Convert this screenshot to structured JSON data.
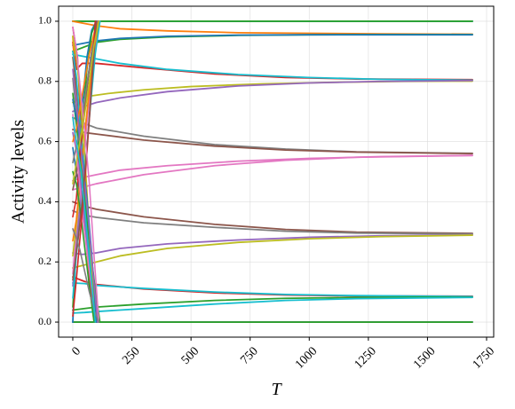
{
  "chart_data": {
    "type": "line",
    "title": "",
    "xlabel": "T",
    "ylabel": "Activity levels",
    "xlim": [
      -60,
      1780
    ],
    "ylim": [
      -0.05,
      1.05
    ],
    "xticks": [
      0,
      250,
      500,
      750,
      1000,
      1250,
      1500,
      1750
    ],
    "yticks": [
      0.0,
      0.2,
      0.4,
      0.6,
      0.8,
      1.0
    ],
    "xtick_labels": [
      "0",
      "250",
      "500",
      "750",
      "1000",
      "1250",
      "1500",
      "1750"
    ],
    "ytick_labels": [
      "0.0",
      "0.2",
      "0.4",
      "0.6",
      "0.8",
      "1.0"
    ],
    "grid": true,
    "legend": "none",
    "series": [
      {
        "color": "#1f77b4",
        "x": [
          0,
          1690
        ],
        "y": [
          1.0,
          1.0
        ]
      },
      {
        "color": "#17becf",
        "x": [
          0,
          1690
        ],
        "y": [
          1.0,
          1.0
        ]
      },
      {
        "color": "#2ca02c",
        "x": [
          0,
          1690
        ],
        "y": [
          1.0,
          1.0
        ]
      },
      {
        "color": "#ff7f0e",
        "x": [
          0,
          100,
          200,
          400,
          700,
          1000,
          1300,
          1690
        ],
        "y": [
          1.0,
          0.985,
          0.975,
          0.968,
          0.962,
          0.96,
          0.958,
          0.957
        ]
      },
      {
        "color": "#2ca02c",
        "x": [
          0,
          100,
          200,
          400,
          700,
          1000,
          1300,
          1690
        ],
        "y": [
          0.9,
          0.93,
          0.94,
          0.948,
          0.953,
          0.955,
          0.956,
          0.956
        ]
      },
      {
        "color": "#1f77b4",
        "x": [
          0,
          100,
          200,
          400,
          700,
          1000,
          1300,
          1690
        ],
        "y": [
          0.92,
          0.935,
          0.943,
          0.95,
          0.954,
          0.955,
          0.955,
          0.955
        ]
      },
      {
        "color": "#d62728",
        "x": [
          0,
          15,
          40,
          100,
          300,
          600,
          900,
          1200,
          1690
        ],
        "y": [
          0.93,
          0.84,
          0.86,
          0.86,
          0.845,
          0.825,
          0.813,
          0.808,
          0.806
        ]
      },
      {
        "color": "#17becf",
        "x": [
          0,
          100,
          200,
          400,
          700,
          1000,
          1300,
          1690
        ],
        "y": [
          0.89,
          0.875,
          0.86,
          0.84,
          0.823,
          0.813,
          0.807,
          0.804
        ]
      },
      {
        "color": "#bcbd22",
        "x": [
          0,
          60,
          150,
          300,
          500,
          800,
          1100,
          1400,
          1690
        ],
        "y": [
          0.73,
          0.75,
          0.76,
          0.772,
          0.783,
          0.792,
          0.797,
          0.8,
          0.801
        ]
      },
      {
        "color": "#9467bd",
        "x": [
          0,
          60,
          100,
          200,
          400,
          700,
          1000,
          1300,
          1690
        ],
        "y": [
          0.7,
          0.72,
          0.73,
          0.745,
          0.766,
          0.785,
          0.795,
          0.8,
          0.803
        ]
      },
      {
        "color": "#7f7f7f",
        "x": [
          0,
          50,
          100,
          300,
          600,
          900,
          1200,
          1690
        ],
        "y": [
          0.68,
          0.66,
          0.645,
          0.618,
          0.59,
          0.575,
          0.566,
          0.561
        ]
      },
      {
        "color": "#8c564b",
        "x": [
          0,
          50,
          100,
          300,
          600,
          900,
          1200,
          1690
        ],
        "y": [
          0.64,
          0.63,
          0.625,
          0.605,
          0.585,
          0.572,
          0.565,
          0.56
        ]
      },
      {
        "color": "#e377c2",
        "x": [
          0,
          40,
          100,
          200,
          400,
          700,
          1000,
          1300,
          1690
        ],
        "y": [
          0.47,
          0.48,
          0.49,
          0.505,
          0.52,
          0.535,
          0.544,
          0.55,
          0.554
        ]
      },
      {
        "color": "#e377c2",
        "x": [
          0,
          50,
          100,
          300,
          600,
          900,
          1200,
          1690
        ],
        "y": [
          0.44,
          0.45,
          0.46,
          0.49,
          0.52,
          0.538,
          0.548,
          0.554
        ]
      },
      {
        "color": "#8c564b",
        "x": [
          0,
          50,
          100,
          300,
          600,
          900,
          1200,
          1690
        ],
        "y": [
          0.4,
          0.385,
          0.375,
          0.35,
          0.325,
          0.308,
          0.299,
          0.295
        ]
      },
      {
        "color": "#7f7f7f",
        "x": [
          0,
          50,
          100,
          300,
          600,
          900,
          1200,
          1690
        ],
        "y": [
          0.37,
          0.355,
          0.348,
          0.33,
          0.315,
          0.302,
          0.296,
          0.293
        ]
      },
      {
        "color": "#9467bd",
        "x": [
          0,
          40,
          100,
          200,
          400,
          700,
          1000,
          1300,
          1690
        ],
        "y": [
          0.23,
          0.225,
          0.23,
          0.245,
          0.26,
          0.273,
          0.282,
          0.287,
          0.29
        ]
      },
      {
        "color": "#bcbd22",
        "x": [
          0,
          50,
          100,
          200,
          400,
          700,
          1000,
          1300,
          1690
        ],
        "y": [
          0.18,
          0.19,
          0.2,
          0.22,
          0.245,
          0.265,
          0.277,
          0.284,
          0.289
        ]
      },
      {
        "color": "#d62728",
        "x": [
          0,
          50,
          100,
          300,
          600,
          900,
          1200,
          1690
        ],
        "y": [
          0.15,
          0.135,
          0.125,
          0.11,
          0.097,
          0.09,
          0.087,
          0.086
        ]
      },
      {
        "color": "#17becf",
        "x": [
          0,
          50,
          100,
          300,
          600,
          900,
          1200,
          1690
        ],
        "y": [
          0.13,
          0.128,
          0.122,
          0.112,
          0.1,
          0.092,
          0.088,
          0.085
        ]
      },
      {
        "color": "#2ca02c",
        "x": [
          0,
          50,
          100,
          300,
          600,
          900,
          1200,
          1690
        ],
        "y": [
          0.04,
          0.045,
          0.05,
          0.06,
          0.072,
          0.079,
          0.082,
          0.083
        ]
      },
      {
        "color": "#17becf",
        "x": [
          0,
          50,
          100,
          300,
          600,
          900,
          1200,
          1690
        ],
        "y": [
          0.03,
          0.032,
          0.035,
          0.045,
          0.06,
          0.072,
          0.078,
          0.082
        ]
      },
      {
        "color": "#1f77b4",
        "x": [
          0,
          1690
        ],
        "y": [
          0.0,
          0.0
        ]
      },
      {
        "color": "#9467bd",
        "x": [
          0,
          1690
        ],
        "y": [
          0.0,
          0.0
        ]
      },
      {
        "color": "#2ca02c",
        "x": [
          0,
          1690
        ],
        "y": [
          0.0,
          0.0
        ]
      },
      {
        "color": "#1f77b4",
        "x": [
          0,
          20,
          40,
          60,
          80,
          100
        ],
        "y": [
          0.0,
          0.35,
          0.72,
          0.88,
          0.97,
          1.0
        ]
      },
      {
        "color": "#ff7f0e",
        "x": [
          0,
          15,
          30,
          50,
          70,
          90
        ],
        "y": [
          0.95,
          0.72,
          0.6,
          0.35,
          0.12,
          0.0
        ]
      },
      {
        "color": "#2ca02c",
        "x": [
          0,
          10,
          25,
          40,
          60,
          80,
          100
        ],
        "y": [
          0.05,
          0.18,
          0.42,
          0.65,
          0.84,
          0.96,
          1.0
        ]
      },
      {
        "color": "#d62728",
        "x": [
          0,
          20,
          35,
          50,
          70,
          95
        ],
        "y": [
          0.98,
          0.88,
          0.64,
          0.42,
          0.15,
          0.0
        ]
      },
      {
        "color": "#9467bd",
        "x": [
          0,
          15,
          30,
          45,
          65,
          85,
          105
        ],
        "y": [
          0.12,
          0.24,
          0.38,
          0.56,
          0.73,
          0.9,
          1.0
        ]
      },
      {
        "color": "#8c564b",
        "x": [
          0,
          18,
          35,
          55,
          75,
          95
        ],
        "y": [
          0.88,
          0.76,
          0.59,
          0.4,
          0.19,
          0.0
        ]
      },
      {
        "color": "#e377c2",
        "x": [
          0,
          15,
          35,
          55,
          75,
          95,
          115
        ],
        "y": [
          0.16,
          0.3,
          0.48,
          0.62,
          0.78,
          0.92,
          1.0
        ]
      },
      {
        "color": "#7f7f7f",
        "x": [
          0,
          15,
          30,
          50,
          70,
          90,
          110
        ],
        "y": [
          0.81,
          0.7,
          0.58,
          0.43,
          0.26,
          0.12,
          0.0
        ]
      },
      {
        "color": "#bcbd22",
        "x": [
          0,
          20,
          40,
          60,
          80,
          100
        ],
        "y": [
          0.22,
          0.36,
          0.55,
          0.7,
          0.86,
          1.0
        ]
      },
      {
        "color": "#17becf",
        "x": [
          0,
          15,
          30,
          50,
          70,
          90
        ],
        "y": [
          0.9,
          0.82,
          0.67,
          0.5,
          0.28,
          0.0
        ]
      },
      {
        "color": "#1f77b4",
        "x": [
          0,
          15,
          30,
          50,
          70,
          90,
          110
        ],
        "y": [
          0.58,
          0.5,
          0.44,
          0.31,
          0.19,
          0.09,
          0.0
        ]
      },
      {
        "color": "#ff7f0e",
        "x": [
          0,
          15,
          35,
          55,
          75,
          95,
          115
        ],
        "y": [
          0.27,
          0.34,
          0.51,
          0.66,
          0.8,
          0.93,
          1.0
        ]
      },
      {
        "color": "#2ca02c",
        "x": [
          0,
          20,
          35,
          55,
          75,
          95,
          115
        ],
        "y": [
          0.76,
          0.62,
          0.51,
          0.37,
          0.24,
          0.11,
          0.0
        ]
      },
      {
        "color": "#d62728",
        "x": [
          0,
          15,
          30,
          45,
          60,
          80,
          100
        ],
        "y": [
          0.35,
          0.41,
          0.55,
          0.66,
          0.79,
          0.9,
          1.0
        ]
      },
      {
        "color": "#9467bd",
        "x": [
          0,
          20,
          40,
          60,
          80,
          100
        ],
        "y": [
          0.63,
          0.55,
          0.41,
          0.27,
          0.12,
          0.0
        ]
      },
      {
        "color": "#8c564b",
        "x": [
          0,
          15,
          30,
          50,
          70,
          90,
          110
        ],
        "y": [
          0.44,
          0.49,
          0.59,
          0.71,
          0.84,
          0.94,
          1.0
        ]
      },
      {
        "color": "#e377c2",
        "x": [
          0,
          15,
          30,
          45,
          65,
          85,
          105
        ],
        "y": [
          0.69,
          0.57,
          0.45,
          0.33,
          0.2,
          0.08,
          0.0
        ]
      },
      {
        "color": "#7f7f7f",
        "x": [
          0,
          20,
          40,
          60,
          80,
          100
        ],
        "y": [
          0.53,
          0.6,
          0.68,
          0.79,
          0.9,
          1.0
        ]
      },
      {
        "color": "#bcbd22",
        "x": [
          0,
          20,
          35,
          50,
          70,
          95
        ],
        "y": [
          0.95,
          0.85,
          0.71,
          0.56,
          0.31,
          0.0
        ]
      },
      {
        "color": "#17becf",
        "x": [
          0,
          15,
          35,
          55,
          75,
          95,
          115
        ],
        "y": [
          0.08,
          0.22,
          0.37,
          0.54,
          0.72,
          0.89,
          1.0
        ]
      },
      {
        "color": "#1f77b4",
        "x": [
          0,
          20,
          40,
          60,
          80,
          100
        ],
        "y": [
          0.74,
          0.66,
          0.55,
          0.41,
          0.23,
          0.0
        ]
      },
      {
        "color": "#ff7f0e",
        "x": [
          0,
          15,
          30,
          50,
          70,
          90,
          110
        ],
        "y": [
          0.6,
          0.64,
          0.71,
          0.8,
          0.89,
          0.96,
          1.0
        ]
      },
      {
        "color": "#2ca02c",
        "x": [
          0,
          15,
          30,
          50,
          70,
          90
        ],
        "y": [
          0.5,
          0.46,
          0.38,
          0.25,
          0.12,
          0.0
        ]
      },
      {
        "color": "#d62728",
        "x": [
          0,
          15,
          35,
          55,
          75,
          95
        ],
        "y": [
          0.02,
          0.14,
          0.32,
          0.51,
          0.73,
          1.0
        ]
      },
      {
        "color": "#9467bd",
        "x": [
          0,
          15,
          30,
          45,
          65,
          85,
          105
        ],
        "y": [
          0.84,
          0.73,
          0.61,
          0.5,
          0.35,
          0.17,
          0.0
        ]
      },
      {
        "color": "#8c564b",
        "x": [
          0,
          20,
          40,
          60,
          80,
          100
        ],
        "y": [
          0.14,
          0.26,
          0.4,
          0.58,
          0.79,
          1.0
        ]
      },
      {
        "color": "#e377c2",
        "x": [
          0,
          15,
          30,
          50,
          70,
          90,
          110
        ],
        "y": [
          0.98,
          0.91,
          0.79,
          0.64,
          0.46,
          0.22,
          0.0
        ]
      },
      {
        "color": "#7f7f7f",
        "x": [
          0,
          15,
          30,
          50,
          70,
          90,
          110
        ],
        "y": [
          0.31,
          0.28,
          0.24,
          0.17,
          0.1,
          0.04,
          0.0
        ]
      },
      {
        "color": "#bcbd22",
        "x": [
          0,
          15,
          30,
          50,
          70,
          90,
          110
        ],
        "y": [
          0.46,
          0.53,
          0.6,
          0.69,
          0.8,
          0.92,
          1.0
        ]
      },
      {
        "color": "#17becf",
        "x": [
          0,
          15,
          35,
          55,
          75,
          95
        ],
        "y": [
          0.68,
          0.6,
          0.5,
          0.34,
          0.17,
          0.0
        ]
      }
    ]
  }
}
